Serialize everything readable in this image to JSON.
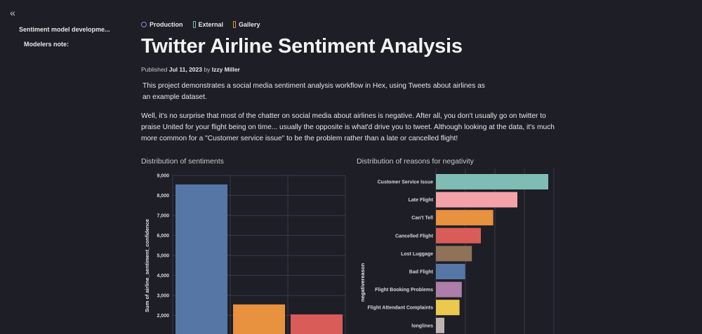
{
  "sidebar": {
    "outline": [
      {
        "label": "Sentiment model developme..."
      },
      {
        "label": "Modelers note:"
      }
    ]
  },
  "tags": [
    {
      "label": "Production",
      "color": "#7b8fd0",
      "style": "dot"
    },
    {
      "label": "External",
      "color": "#6fc3b5",
      "style": "bar"
    },
    {
      "label": "Gallery",
      "color": "#e8924a",
      "style": "bar"
    }
  ],
  "header": {
    "title": "Twitter Airline Sentiment Analysis",
    "published_label": "Published",
    "published_date": "Jul 11, 2023",
    "by_label": "by",
    "author": "Izzy Miller"
  },
  "content": {
    "intro": "This project demonstrates a social media sentiment analysis workflow in Hex, using Tweets about airlines as an example dataset.",
    "body": "Well, it's no surprise that most of the chatter on social media about airlines is negative. After all, you don't usually go on twitter to praise United for your flight being on time... usually the opposite is what'd drive you to tweet. Although looking at the data, it's much more common for a \"Customer service issue\" to be the problem rather than a late or cancelled flight!"
  },
  "chart_data": [
    {
      "type": "bar",
      "title": "Distribution of sentiments",
      "ylabel": "Sum of airline_sentiment_confidence",
      "ylim": [
        0,
        9000
      ],
      "yticks": [
        "9,000",
        "8,000",
        "7,000",
        "6,000",
        "5,000",
        "4,000",
        "3,000",
        "2,000"
      ],
      "series": [
        {
          "values": [
            8550,
            2550,
            2050
          ],
          "colors": [
            "#5677a6",
            "#e8913f",
            "#d95c58"
          ]
        }
      ]
    },
    {
      "type": "bar",
      "orientation": "horizontal",
      "title": "Distribution of reasons for negativity",
      "ylabel": "negativereason",
      "xlim": [
        0,
        2100
      ],
      "categories": [
        "Customer Service Issue",
        "Late Flight",
        "Can't Tell",
        "Cancelled Flight",
        "Lost Luggage",
        "Bad Flight",
        "Flight Booking Problems",
        "Flight Attendant Complaints",
        "longlines"
      ],
      "values": [
        2000,
        1450,
        1020,
        800,
        640,
        520,
        460,
        420,
        150
      ],
      "colors": [
        "#7fbcb6",
        "#f3a3a8",
        "#e8913f",
        "#d95c58",
        "#8f7257",
        "#5677a6",
        "#ad7ea9",
        "#ebc94e",
        "#bcb4b0"
      ]
    }
  ]
}
